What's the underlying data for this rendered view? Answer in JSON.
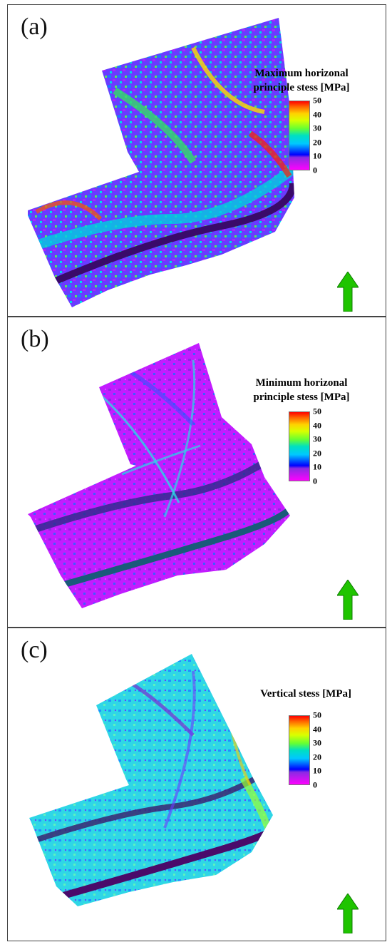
{
  "panels": [
    {
      "label": "(a)",
      "legend_title_line1": "Maximum horizonal",
      "legend_title_line2": "principle stess [MPa]",
      "ticks": [
        "50",
        "40",
        "30",
        "20",
        "10",
        "0"
      ],
      "dominant_color": "#6a3bff"
    },
    {
      "label": "(b)",
      "legend_title_line1": "Minimum horizonal",
      "legend_title_line2": "principle stess [MPa]",
      "ticks": [
        "50",
        "40",
        "30",
        "20",
        "10",
        "0"
      ],
      "dominant_color": "#c31cff"
    },
    {
      "label": "(c)",
      "legend_title_line1": "Vertical stess [MPa]",
      "legend_title_line2": "",
      "ticks": [
        "50",
        "40",
        "30",
        "20",
        "10",
        "0"
      ],
      "dominant_color": "#2fd6e6"
    }
  ],
  "colors": {
    "north_arrow": "#1fc400",
    "border": "#444444"
  },
  "icons": [
    "north-arrow-icon"
  ]
}
